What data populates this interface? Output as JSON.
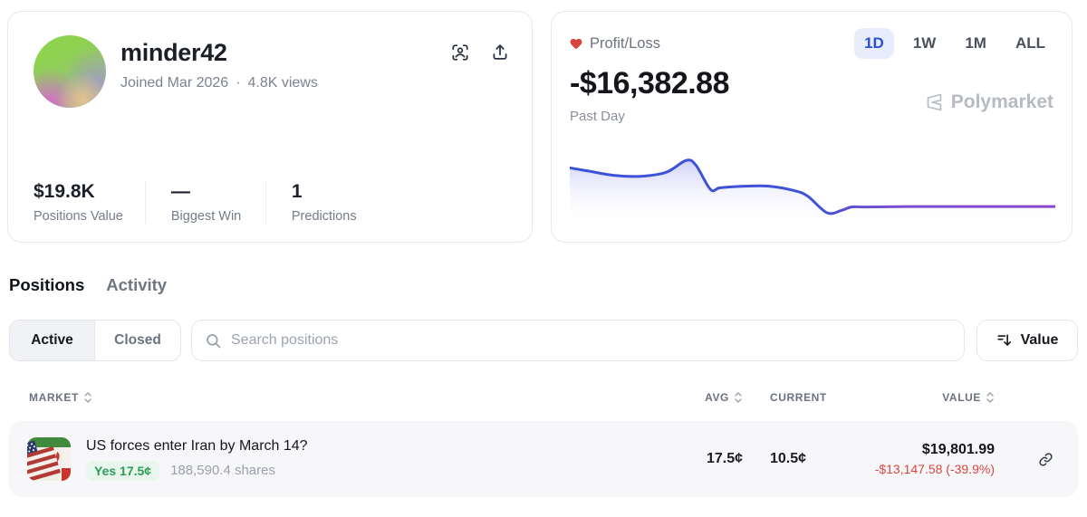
{
  "profile": {
    "username": "minder42",
    "meta": {
      "joined": "Joined Mar 2026",
      "dot": "·",
      "views": "4.8K views"
    },
    "stats": [
      {
        "value": "$19.8K",
        "label": "Positions Value"
      },
      {
        "value": "—",
        "label": "Biggest Win"
      },
      {
        "value": "1",
        "label": "Predictions"
      }
    ],
    "icons": [
      "face-scan-icon",
      "share-upload-icon"
    ]
  },
  "pnl": {
    "label": "Profit/Loss",
    "heart_color": "#d8443c",
    "value": "-$16,382.88",
    "period": "Past Day",
    "ranges": [
      {
        "label": "1D",
        "active": true
      },
      {
        "label": "1W",
        "active": false
      },
      {
        "label": "1M",
        "active": false
      },
      {
        "label": "ALL",
        "active": false
      }
    ],
    "active_range": "1D",
    "watermark": "Polymarket",
    "accent_blue": "#2b50cf",
    "range_pill_bg": "#e8edfb"
  },
  "chart_data": {
    "type": "area",
    "title": "Profit/Loss — Past Day",
    "xlabel": "",
    "ylabel": "",
    "axes_visible": false,
    "grid": false,
    "legend": false,
    "end_value_label": "-$16,382.88",
    "line_gradient": [
      "#3a52d9",
      "#4152d6",
      "#7a4ed3",
      "#8a46cf"
    ],
    "fill_top": "rgba(95,104,226,0.30)",
    "fill_bottom": "rgba(255,255,255,0)",
    "note": "y is percent from chart top (no axis labels shown); higher line = higher P/L",
    "points_pct": [
      [
        0,
        33
      ],
      [
        4,
        37
      ],
      [
        9,
        42
      ],
      [
        15,
        43
      ],
      [
        20,
        38
      ],
      [
        24,
        24
      ],
      [
        26,
        30
      ],
      [
        29,
        59
      ],
      [
        31,
        57
      ],
      [
        36,
        55
      ],
      [
        41,
        55
      ],
      [
        46,
        60
      ],
      [
        49,
        67
      ],
      [
        53,
        87
      ],
      [
        56,
        84
      ],
      [
        58,
        80
      ],
      [
        61,
        80
      ],
      [
        70,
        79.5
      ],
      [
        85,
        79.5
      ],
      [
        100,
        79.5
      ]
    ]
  },
  "section_tabs": [
    {
      "label": "Positions",
      "active": true
    },
    {
      "label": "Activity",
      "active": false
    }
  ],
  "filters": {
    "segments": [
      {
        "label": "Active",
        "active": true
      },
      {
        "label": "Closed",
        "active": false
      }
    ],
    "search": {
      "placeholder": "Search positions"
    },
    "sort": {
      "label": "Value"
    }
  },
  "table": {
    "headers": [
      {
        "label": "MARKET",
        "sortable": true
      },
      {
        "label": "AVG",
        "sortable": true
      },
      {
        "label": "CURRENT",
        "sortable": false
      },
      {
        "label": "VALUE",
        "sortable": true
      }
    ],
    "rows": [
      {
        "market": "US forces enter Iran by March 14?",
        "outcome_badge": "Yes 17.5¢",
        "shares": "188,590.4 shares",
        "avg": "17.5¢",
        "current": "10.5¢",
        "value": "$19,801.99",
        "pnl": "-$13,147.58 (-39.9%)",
        "pnl_color": "#d9453f",
        "badge_text_color": "#2a9d58",
        "badge_bg_color": "#e9f6ee",
        "thumbnail": "us-iran-flags"
      }
    ]
  }
}
